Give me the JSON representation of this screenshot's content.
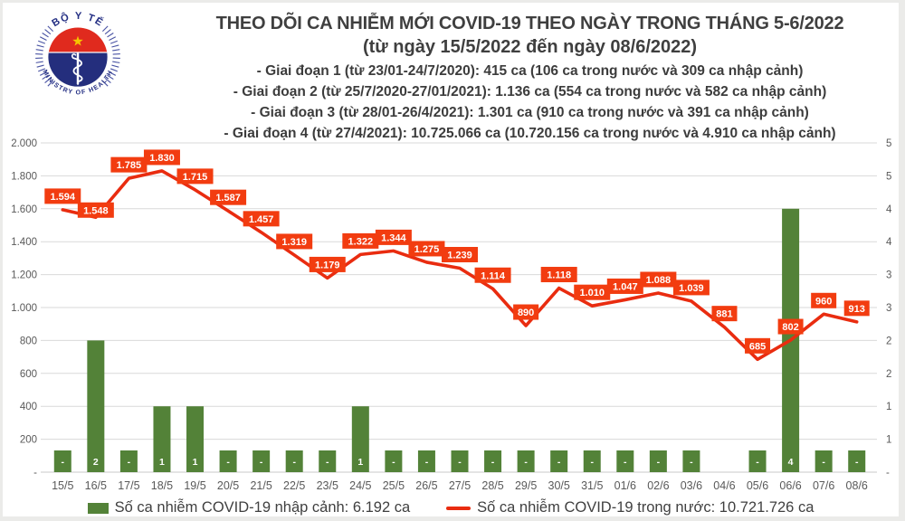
{
  "header": {
    "logo": {
      "top_text": "BỘ Y TẾ",
      "bottom_text": "MINISTRY OF HEALTH"
    },
    "title": "THEO DÕI CA NHIỄM MỚI COVID-19 THEO NGÀY TRONG THÁNG 5-6/2022",
    "subtitle": "(từ ngày 15/5/2022 đến ngày 08/6/2022)",
    "periods": [
      "- Giai đoạn 1 (từ 23/01-24/7/2020): 415 ca (106 ca trong nước và 309 ca nhập cảnh)",
      "- Giai đoạn 2 (từ 25/7/2020-27/01/2021): 1.136 ca (554 ca trong nước và 582 ca nhập cảnh)",
      "- Giai đoạn 3 (từ 28/01-26/4/2021): 1.301 ca (910 ca trong nước và 391 ca nhập cảnh)",
      "- Giai đoạn 4 (từ 27/4/2021): 10.725.066 ca (10.720.156 ca trong nước và 4.910 ca nhập cảnh)"
    ]
  },
  "chart_data": {
    "type": "combo-line-bar",
    "categories": [
      "15/5",
      "16/5",
      "17/5",
      "18/5",
      "19/5",
      "20/5",
      "21/5",
      "22/5",
      "23/5",
      "24/5",
      "25/5",
      "26/5",
      "27/5",
      "28/5",
      "29/5",
      "30/5",
      "31/5",
      "01/6",
      "02/6",
      "03/6",
      "04/6",
      "05/6",
      "06/6",
      "07/6",
      "08/6"
    ],
    "series": [
      {
        "name": "Số ca nhiễm COVID-19 trong nước",
        "type": "line",
        "color": "#e92c10",
        "label_box_color": "#f23c10",
        "values": [
          1594,
          1548,
          1785,
          1830,
          1715,
          1587,
          1457,
          1319,
          1179,
          1322,
          1344,
          1275,
          1239,
          1114,
          890,
          1118,
          1010,
          1047,
          1088,
          1039,
          881,
          685,
          802,
          960,
          913
        ],
        "labels": [
          "1.594",
          "1.548",
          "1.785",
          "1.830",
          "1.715",
          "1.587",
          "1.457",
          "1.319",
          "1.179",
          "1.322",
          "1.344",
          "1.275",
          "1.239",
          "1.114",
          "890",
          "1.118",
          "1.010",
          "1.047",
          "1.088",
          "1.039",
          "881",
          "685",
          "802",
          "960",
          "913"
        ]
      },
      {
        "name": "Số ca nhiễm COVID-19 nhập cảnh",
        "type": "bar",
        "color": "#538238",
        "values": [
          0,
          2,
          0,
          1,
          1,
          0,
          0,
          0,
          0,
          1,
          0,
          0,
          0,
          0,
          0,
          0,
          0,
          0,
          0,
          0,
          null,
          0,
          4,
          0,
          0
        ],
        "labels": [
          "-",
          "2",
          "-",
          "1",
          "1",
          "-",
          "-",
          "-",
          "-",
          "1",
          "-",
          "-",
          "-",
          "-",
          "-",
          "-",
          "-",
          "-",
          "-",
          "-",
          null,
          "-",
          "4",
          "-",
          "-"
        ]
      }
    ],
    "left_axis": {
      "min": 0,
      "max": 2000,
      "step": 200,
      "ticks_top_to_bottom": [
        "2.000",
        "1.800",
        "1.600",
        "1.400",
        "1.200",
        "1.000",
        "800",
        "600",
        "400",
        "200",
        "-"
      ]
    },
    "right_axis": {
      "min": 0,
      "max": 5,
      "ticks_top_to_bottom": [
        "5",
        "5",
        "4",
        "4",
        "3",
        "3",
        "2",
        "2",
        "1",
        "1",
        "-"
      ]
    },
    "grid": "horizontal",
    "legend_position": "bottom"
  },
  "legend": {
    "bar_label": "Số ca nhiễm COVID-19 nhập cảnh: 6.192 ca",
    "line_label": "Số ca nhiễm COVID-19 trong nước: 10.721.726 ca"
  },
  "colors": {
    "bar_green": "#538238",
    "line_red": "#e92c10",
    "label_box": "#f23c10",
    "grid_gray": "#d9d9d9",
    "axis_text": "#595959",
    "title_text": "#3f3f3f",
    "logo_navy": "#242e7d",
    "logo_red": "#e02a1e",
    "logo_star": "#f5c400"
  }
}
